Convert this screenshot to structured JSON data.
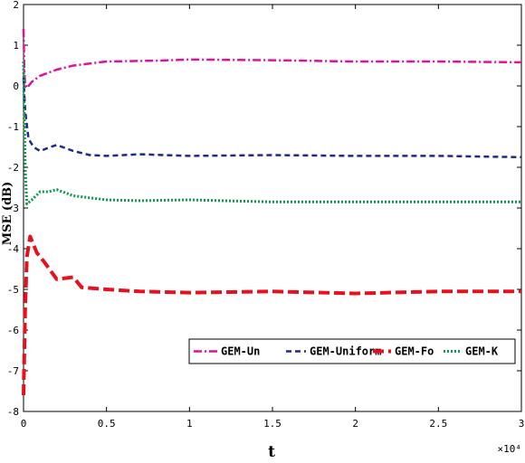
{
  "chart_data": {
    "type": "line",
    "title": "",
    "xlabel": "t",
    "ylabel": "MSE (dB)",
    "x_multiplier": "×10⁴",
    "xlim": [
      0,
      3
    ],
    "ylim": [
      -8,
      2
    ],
    "xticks": [
      0,
      0.5,
      1,
      1.5,
      2,
      2.5,
      3
    ],
    "xtick_labels": [
      "0",
      "0.5",
      "1",
      "1.5",
      "2",
      "2.5",
      "3"
    ],
    "yticks": [
      2,
      1,
      0,
      -1,
      -2,
      -3,
      -4,
      -5,
      -6,
      -7,
      -8
    ],
    "ytick_labels": [
      "2",
      "1",
      "0",
      "-1",
      "-2",
      "-3",
      "-4",
      "-5",
      "-6",
      "-7",
      "-8"
    ],
    "grid": false,
    "legend_position": "bottom-right",
    "series": [
      {
        "name": "GEM-Un",
        "color": "#e0109a",
        "dash": "9,3,2,3",
        "width": 2.5,
        "x": [
          0,
          0.005,
          0.01,
          0.02,
          0.05,
          0.1,
          0.2,
          0.3,
          0.5,
          0.8,
          1.0,
          1.5,
          2.0,
          2.5,
          3.0
        ],
        "y": [
          1.4,
          0.4,
          0.0,
          -0.05,
          0.1,
          0.25,
          0.4,
          0.5,
          0.6,
          0.62,
          0.65,
          0.63,
          0.6,
          0.6,
          0.58
        ]
      },
      {
        "name": "GEM-Uniform",
        "color": "#1c2a8c",
        "dash": "6,4",
        "width": 2.5,
        "x": [
          0,
          0.01,
          0.03,
          0.06,
          0.1,
          0.15,
          0.2,
          0.3,
          0.4,
          0.5,
          0.7,
          1.0,
          1.5,
          2.0,
          2.5,
          3.0
        ],
        "y": [
          0.2,
          -0.6,
          -1.3,
          -1.5,
          -1.6,
          -1.52,
          -1.45,
          -1.6,
          -1.7,
          -1.72,
          -1.68,
          -1.72,
          -1.7,
          -1.72,
          -1.72,
          -1.75
        ]
      },
      {
        "name": "GEM-Fo",
        "color": "#e8101e",
        "dash": "12,5",
        "width": 4,
        "x": [
          0,
          0.01,
          0.02,
          0.04,
          0.08,
          0.12,
          0.2,
          0.3,
          0.35,
          0.5,
          0.7,
          1.0,
          1.5,
          2.0,
          2.5,
          3.0
        ],
        "y": [
          -7.6,
          -5.5,
          -4.2,
          -3.7,
          -4.1,
          -4.3,
          -4.75,
          -4.7,
          -4.95,
          -5.0,
          -5.05,
          -5.08,
          -5.05,
          -5.1,
          -5.05,
          -5.05
        ]
      },
      {
        "name": "GEM-K",
        "color": "#0f9a4a",
        "dash": "2,2",
        "width": 3,
        "x": [
          0,
          0.01,
          0.02,
          0.05,
          0.1,
          0.15,
          0.2,
          0.3,
          0.5,
          0.7,
          1.0,
          1.5,
          2.0,
          2.5,
          3.0
        ],
        "y": [
          0.6,
          -2.0,
          -2.9,
          -2.8,
          -2.6,
          -2.6,
          -2.55,
          -2.7,
          -2.8,
          -2.82,
          -2.8,
          -2.85,
          -2.85,
          -2.85,
          -2.85
        ]
      }
    ]
  }
}
